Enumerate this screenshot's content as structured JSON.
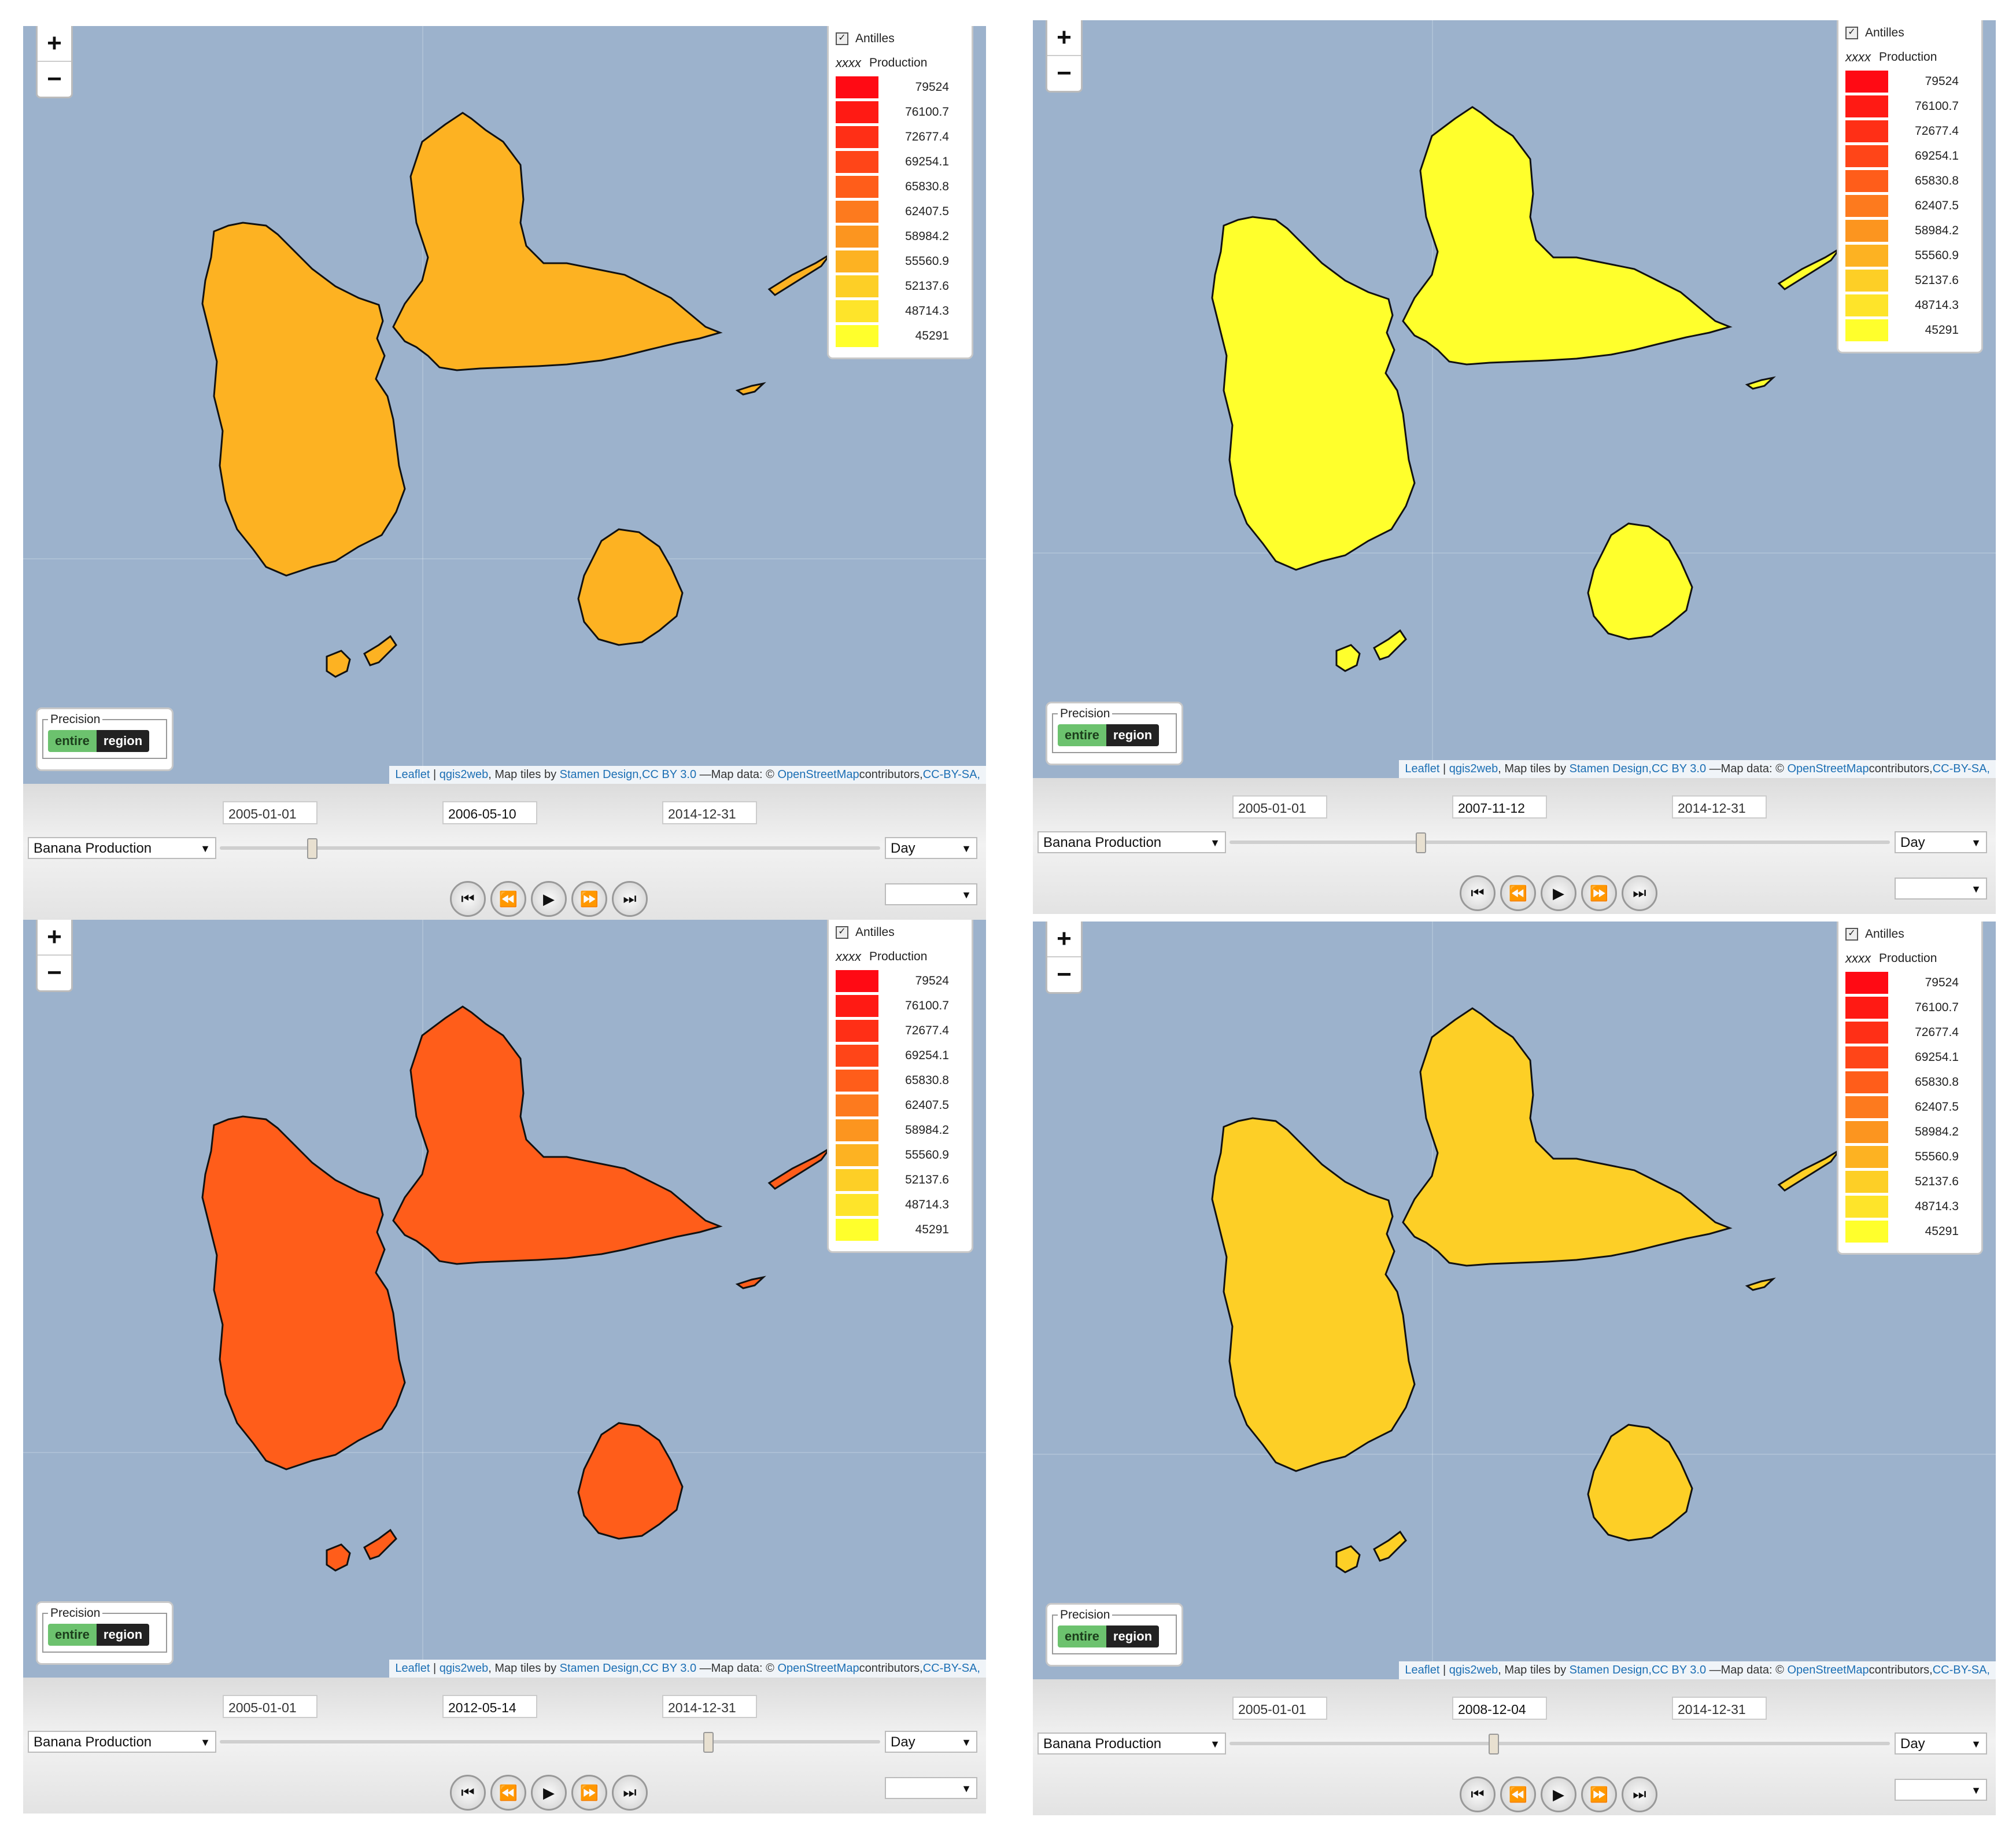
{
  "legend": {
    "layer": "Antilles",
    "symbol": "xxxx",
    "field": "Production",
    "classes": [
      {
        "value": "79524",
        "color": "#ff0a14"
      },
      {
        "value": "76100.7",
        "color": "#ff1a14"
      },
      {
        "value": "72677.4",
        "color": "#ff2f16"
      },
      {
        "value": "69254.1",
        "color": "#ff4518"
      },
      {
        "value": "65830.8",
        "color": "#ff5d1a"
      },
      {
        "value": "62407.5",
        "color": "#fd7a1e"
      },
      {
        "value": "58984.2",
        "color": "#fc951f"
      },
      {
        "value": "55560.9",
        "color": "#fdb222"
      },
      {
        "value": "52137.6",
        "color": "#fdcf26"
      },
      {
        "value": "48714.3",
        "color": "#fee42a"
      },
      {
        "value": "45291",
        "color": "#ffff2c"
      }
    ]
  },
  "precision": {
    "title": "Precision",
    "opt_entire": "entire",
    "opt_region": "region"
  },
  "attribution": {
    "leaflet": "Leaflet",
    "sep": " | ",
    "qgis2web": "qgis2web",
    "tiles": ", Map tiles by ",
    "stamen": "Stamen Design",
    "license": ",CC BY 3.0",
    "mapdata": " —Map data: © ",
    "osm": "OpenStreetMap",
    "contrib": "contributors,",
    "ccbysa": "CC-BY-SA,"
  },
  "controls": {
    "start_date": "2005-01-01",
    "end_date": "2014-12-31",
    "layer_select": "Banana Production",
    "unit_select": "Day",
    "speed_select": ""
  },
  "panels": [
    {
      "current_date": "2006-05-10",
      "fill": "#fdb222",
      "slider_fraction": 0.14
    },
    {
      "current_date": "2007-11-12",
      "fill": "#ffff2c",
      "slider_fraction": 0.29
    },
    {
      "current_date": "2012-05-14",
      "fill": "#ff5d1a",
      "slider_fraction": 0.74
    },
    {
      "current_date": "2008-12-04",
      "fill": "#fdcf26",
      "slider_fraction": 0.4
    }
  ]
}
